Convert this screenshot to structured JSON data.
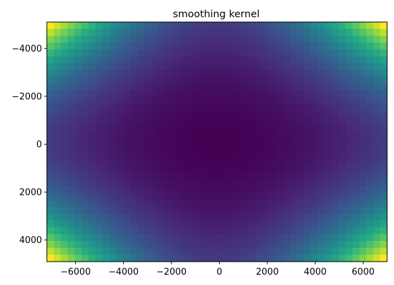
{
  "chart_data": {
    "type": "heatmap",
    "title": "smoothing kernel",
    "xlabel": "",
    "ylabel": "",
    "xlim": [
      -7200,
      7000
    ],
    "ylim": [
      4900,
      -5100
    ],
    "y_axis_inverted": true,
    "grid": false,
    "legend": "none",
    "colormap": "viridis",
    "grid_cells": {
      "columns": 49,
      "rows": 35
    },
    "value_model": "normalized(x^2 * y^2 + 0.25 * (x^2 + y^2))",
    "value_range": [
      0,
      1
    ],
    "x_ticks": [
      {
        "value": -6000,
        "label": "−6000"
      },
      {
        "value": -4000,
        "label": "−4000"
      },
      {
        "value": -2000,
        "label": "−2000"
      },
      {
        "value": 0,
        "label": "0"
      },
      {
        "value": 2000,
        "label": "2000"
      },
      {
        "value": 4000,
        "label": "4000"
      },
      {
        "value": 6000,
        "label": "6000"
      }
    ],
    "y_ticks": [
      {
        "value": -4000,
        "label": "−4000"
      },
      {
        "value": -2000,
        "label": "−2000"
      },
      {
        "value": 0,
        "label": "0"
      },
      {
        "value": 2000,
        "label": "2000"
      },
      {
        "value": 4000,
        "label": "4000"
      }
    ]
  }
}
